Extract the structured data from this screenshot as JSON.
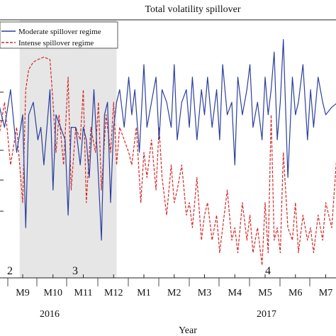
{
  "chart_data": {
    "type": "line",
    "title": "Total volatility spillover",
    "xlabel": "Year",
    "ylabel": "",
    "grid": false,
    "legend_position": "top-left",
    "x_ticks": [
      "M9",
      "M10",
      "M11",
      "M12",
      "M1",
      "M2",
      "M3",
      "M4",
      "M5",
      "M6",
      "M7"
    ],
    "year_labels": [
      "2016",
      "2017"
    ],
    "regime_labels": [
      "2",
      "3",
      "4"
    ],
    "shaded_period": {
      "from_month": 8.9,
      "to_month": 12.1,
      "color": "#e6e6e6"
    },
    "colors": {
      "moderate": "#2b3f9c",
      "intense": "#d42a2a"
    },
    "y_range": [
      0,
      10
    ],
    "series": [
      {
        "name": "Moderate spillover regime",
        "style": "solid",
        "x": [
          8.2,
          8.4,
          8.6,
          8.8,
          9.0,
          9.1,
          9.2,
          9.35,
          9.5,
          9.6,
          9.7,
          9.8,
          9.9,
          10.0,
          10.1,
          10.25,
          10.4,
          10.5,
          10.6,
          10.75,
          10.9,
          11.0,
          11.1,
          11.2,
          11.35,
          11.5,
          11.6,
          11.7,
          11.8,
          11.9,
          12.0,
          12.1,
          12.2,
          12.35,
          12.5,
          12.6,
          12.7,
          12.85,
          13.0,
          13.1,
          13.25,
          13.4,
          13.5,
          13.6,
          13.75,
          13.9,
          14.0,
          14.1,
          14.25,
          14.4,
          14.5,
          14.6,
          14.75,
          14.9,
          15.0,
          15.1,
          15.25,
          15.4,
          15.5,
          15.6,
          15.75,
          15.9,
          16.0,
          16.1,
          16.25,
          16.4,
          16.5,
          16.6,
          16.75,
          16.9,
          17.0,
          17.1,
          17.2,
          17.3,
          17.4,
          17.5,
          17.6,
          17.75,
          17.9,
          18.0,
          18.1,
          18.25,
          18.4,
          18.5,
          18.6,
          18.75,
          18.9,
          19.0,
          19.2,
          19.4
        ],
        "values": [
          7.0,
          6.0,
          7.5,
          5.0,
          6.5,
          2.0,
          6.5,
          7.0,
          5.5,
          6.0,
          4.5,
          6.0,
          7.5,
          3.5,
          6.5,
          6.0,
          5.5,
          2.5,
          6.0,
          6.0,
          4.5,
          6.0,
          5.5,
          4.0,
          7.5,
          4.0,
          1.5,
          6.5,
          7.0,
          3.0,
          6.0,
          7.0,
          7.5,
          6.0,
          8.0,
          6.5,
          7.5,
          5.0,
          8.5,
          6.0,
          7.0,
          8.0,
          5.5,
          7.5,
          7.0,
          6.0,
          8.5,
          5.5,
          7.0,
          7.5,
          6.0,
          8.0,
          5.5,
          7.5,
          6.5,
          8.0,
          6.0,
          7.5,
          5.5,
          8.5,
          6.5,
          7.0,
          4.5,
          8.0,
          6.5,
          7.5,
          8.5,
          6.0,
          7.0,
          5.5,
          8.0,
          6.5,
          7.5,
          9.0,
          5.5,
          7.0,
          9.5,
          4.0,
          8.0,
          6.5,
          7.0,
          8.5,
          5.5,
          7.5,
          6.0,
          8.0,
          7.0,
          6.5,
          6.8,
          7.0
        ]
      },
      {
        "name": "Intense spillover regime",
        "style": "dashed",
        "x": [
          8.2,
          8.4,
          8.6,
          8.8,
          9.0,
          9.1,
          9.2,
          9.35,
          9.5,
          9.7,
          9.9,
          10.0,
          10.1,
          10.2,
          10.35,
          10.5,
          10.6,
          10.75,
          10.9,
          11.0,
          11.1,
          11.25,
          11.4,
          11.5,
          11.6,
          11.75,
          11.9,
          12.0,
          12.1,
          12.2,
          12.35,
          12.5,
          12.6,
          12.75,
          12.9,
          13.0,
          13.1,
          13.25,
          13.4,
          13.5,
          13.6,
          13.75,
          13.9,
          14.0,
          14.1,
          14.25,
          14.4,
          14.5,
          14.6,
          14.75,
          14.9,
          15.0,
          15.1,
          15.25,
          15.4,
          15.5,
          15.6,
          15.75,
          15.9,
          16.0,
          16.1,
          16.25,
          16.4,
          16.5,
          16.6,
          16.75,
          16.9,
          17.0,
          17.1,
          17.2,
          17.3,
          17.4,
          17.5,
          17.6,
          17.75,
          17.9,
          18.0,
          18.1,
          18.25,
          18.4,
          18.5,
          18.6,
          18.75,
          18.9,
          19.0,
          19.2,
          19.4
        ],
        "values": [
          5.5,
          7.0,
          4.5,
          6.0,
          3.0,
          7.5,
          8.3,
          8.6,
          8.7,
          8.8,
          8.7,
          7.0,
          5.0,
          6.5,
          4.5,
          8.0,
          3.5,
          6.0,
          5.5,
          7.5,
          3.0,
          6.0,
          5.0,
          7.0,
          3.5,
          6.5,
          5.0,
          7.0,
          4.5,
          6.0,
          5.5,
          5.0,
          4.5,
          6.0,
          3.0,
          5.0,
          4.0,
          5.5,
          3.5,
          6.0,
          4.0,
          2.5,
          4.5,
          3.0,
          3.5,
          4.5,
          2.5,
          3.0,
          2.0,
          4.0,
          1.5,
          2.5,
          3.0,
          1.5,
          2.5,
          1.0,
          2.0,
          3.5,
          1.5,
          2.0,
          1.0,
          3.0,
          1.5,
          2.5,
          1.0,
          2.0,
          0.5,
          3.0,
          1.0,
          6.5,
          1.5,
          2.0,
          1.0,
          5.0,
          2.0,
          1.5,
          3.0,
          1.0,
          2.5,
          1.5,
          2.0,
          1.0,
          2.5,
          1.5,
          3.0,
          2.0,
          5.5
        ]
      }
    ]
  }
}
